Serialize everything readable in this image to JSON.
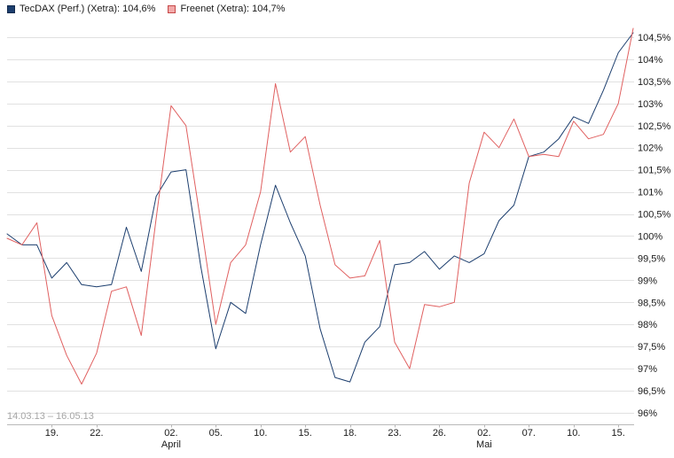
{
  "legend": {
    "tecdax_label": "TecDAX (Perf.) (Xetra): 104,6%",
    "freenet_label": "Freenet (Xetra): 104,7%"
  },
  "footer": {
    "date_range": "14.03.13 – 16.05.13"
  },
  "colors": {
    "tecdax": "#1c3e6e",
    "tecdax_border": "#122a4c",
    "freenet": "#e06060",
    "freenet_fill": "#f2a9a9",
    "freenet_border": "#c64848",
    "grid": "#e1e1e1",
    "axis": "#b8b8b8",
    "text": "#1a1a1a",
    "muted_text": "#a6a6a6"
  },
  "chart_data": {
    "type": "line",
    "title": "",
    "xlabel": "",
    "ylabel": "",
    "grid": "horizontal",
    "legend_position": "top-left",
    "ylim": [
      96,
      104.5
    ],
    "x_dates": [
      "14.03.13",
      "15.03.13",
      "18.03.13",
      "19.03.13",
      "20.03.13",
      "21.03.13",
      "22.03.13",
      "25.03.13",
      "26.03.13",
      "27.03.13",
      "28.03.13",
      "02.04.13",
      "03.04.13",
      "04.04.13",
      "05.04.13",
      "08.04.13",
      "09.04.13",
      "10.04.13",
      "11.04.13",
      "12.04.13",
      "15.04.13",
      "16.04.13",
      "17.04.13",
      "18.04.13",
      "19.04.13",
      "22.04.13",
      "23.04.13",
      "24.04.13",
      "25.04.13",
      "26.04.13",
      "29.04.13",
      "30.04.13",
      "02.05.13",
      "03.05.13",
      "06.05.13",
      "07.05.13",
      "08.05.13",
      "09.05.13",
      "10.05.13",
      "13.05.13",
      "14.05.13",
      "15.05.13",
      "16.05.13"
    ],
    "series": [
      {
        "name": "TecDAX (Perf.) (Xetra)",
        "current": "104,6%",
        "color_key": "tecdax",
        "values": [
          100.05,
          99.8,
          99.8,
          99.05,
          99.4,
          98.9,
          98.85,
          98.9,
          100.2,
          99.2,
          100.9,
          101.45,
          101.5,
          99.3,
          97.45,
          98.5,
          98.25,
          99.8,
          101.15,
          100.3,
          99.55,
          97.9,
          96.8,
          96.7,
          97.6,
          97.95,
          99.35,
          99.4,
          99.65,
          99.25,
          99.55,
          99.4,
          99.6,
          100.35,
          100.7,
          101.8,
          101.9,
          102.2,
          102.7,
          102.55,
          103.3,
          104.15,
          104.6
        ]
      },
      {
        "name": "Freenet (Xetra)",
        "current": "104,7%",
        "color_key": "freenet",
        "values": [
          99.95,
          99.8,
          100.3,
          98.2,
          97.3,
          96.65,
          97.35,
          98.75,
          98.85,
          97.75,
          100.4,
          102.95,
          102.5,
          100.3,
          98.0,
          99.4,
          99.8,
          101.0,
          103.45,
          101.9,
          102.25,
          100.7,
          99.35,
          99.05,
          99.1,
          99.9,
          97.6,
          97.0,
          98.45,
          98.4,
          98.5,
          101.2,
          102.35,
          102.0,
          102.65,
          101.8,
          101.85,
          101.8,
          102.6,
          102.2,
          102.3,
          103.0,
          104.7
        ]
      }
    ],
    "y_ticks": [
      {
        "v": 96,
        "label": "96%"
      },
      {
        "v": 96.5,
        "label": "96,5%"
      },
      {
        "v": 97,
        "label": "97%"
      },
      {
        "v": 97.5,
        "label": "97,5%"
      },
      {
        "v": 98,
        "label": "98%"
      },
      {
        "v": 98.5,
        "label": "98,5%"
      },
      {
        "v": 99,
        "label": "99%"
      },
      {
        "v": 99.5,
        "label": "99,5%"
      },
      {
        "v": 100,
        "label": "100%"
      },
      {
        "v": 100.5,
        "label": "100,5%"
      },
      {
        "v": 101,
        "label": "101%"
      },
      {
        "v": 101.5,
        "label": "101,5%"
      },
      {
        "v": 102,
        "label": "102%"
      },
      {
        "v": 102.5,
        "label": "102,5%"
      },
      {
        "v": 103,
        "label": "103%"
      },
      {
        "v": 103.5,
        "label": "103,5%"
      },
      {
        "v": 104,
        "label": "104%"
      },
      {
        "v": 104.5,
        "label": "104,5%"
      }
    ],
    "x_ticks": [
      {
        "idx": 3,
        "label": "19."
      },
      {
        "idx": 6,
        "label": "22."
      },
      {
        "idx": 11,
        "label": "02.",
        "month": "April"
      },
      {
        "idx": 14,
        "label": "05."
      },
      {
        "idx": 17,
        "label": "10."
      },
      {
        "idx": 20,
        "label": "15."
      },
      {
        "idx": 23,
        "label": "18."
      },
      {
        "idx": 26,
        "label": "23."
      },
      {
        "idx": 29,
        "label": "26."
      },
      {
        "idx": 32,
        "label": "02.",
        "month": "Mai"
      },
      {
        "idx": 35,
        "label": "07."
      },
      {
        "idx": 38,
        "label": "10."
      },
      {
        "idx": 41,
        "label": "15."
      }
    ]
  }
}
